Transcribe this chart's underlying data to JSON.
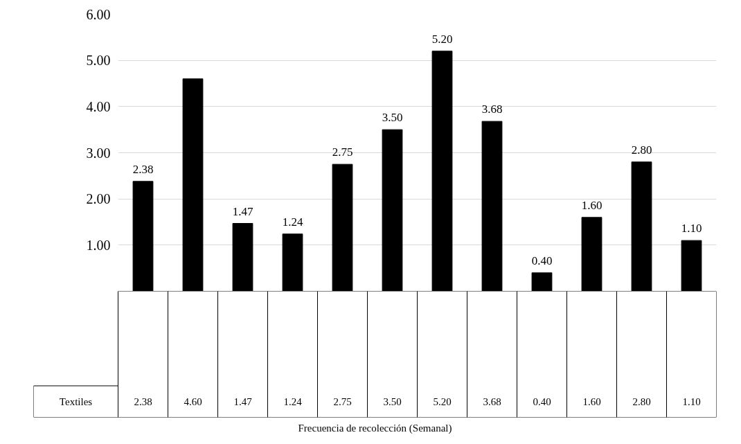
{
  "chart_data": {
    "type": "bar",
    "categories": [
      null,
      null,
      null,
      null,
      null,
      null,
      null,
      null,
      null,
      null,
      null,
      null
    ],
    "series": [
      {
        "name": "Textiles",
        "color": "#000000",
        "values": [
          2.38,
          4.6,
          1.47,
          1.24,
          2.75,
          3.5,
          5.2,
          3.68,
          0.4,
          1.6,
          2.8,
          1.1
        ],
        "value_labels": [
          "2.38",
          null,
          "1.47",
          "1.24",
          "2.75",
          "3.50",
          "5.20",
          "3.68",
          "0.40",
          "1.60",
          "2.80",
          "1.10"
        ]
      }
    ],
    "annotations": [
      "2.38",
      "4.60",
      "1.47",
      "1.24",
      "2.75",
      "3.50",
      "5.20",
      "3.68",
      "0.40",
      "1.60",
      "2.80",
      "1.10",
      "Frecuencia de recolección (Semanal)"
    ],
    "ylim": [
      0,
      6
    ],
    "yticks": [
      {
        "value": 1,
        "label": "1.00"
      },
      {
        "value": 2,
        "label": "2.00"
      },
      {
        "value": 3,
        "label": "3.00"
      },
      {
        "value": 4,
        "label": "4.00"
      },
      {
        "value": 5,
        "label": "5.00"
      },
      {
        "value": 6,
        "label": "6.00"
      }
    ],
    "grid": "y"
  }
}
